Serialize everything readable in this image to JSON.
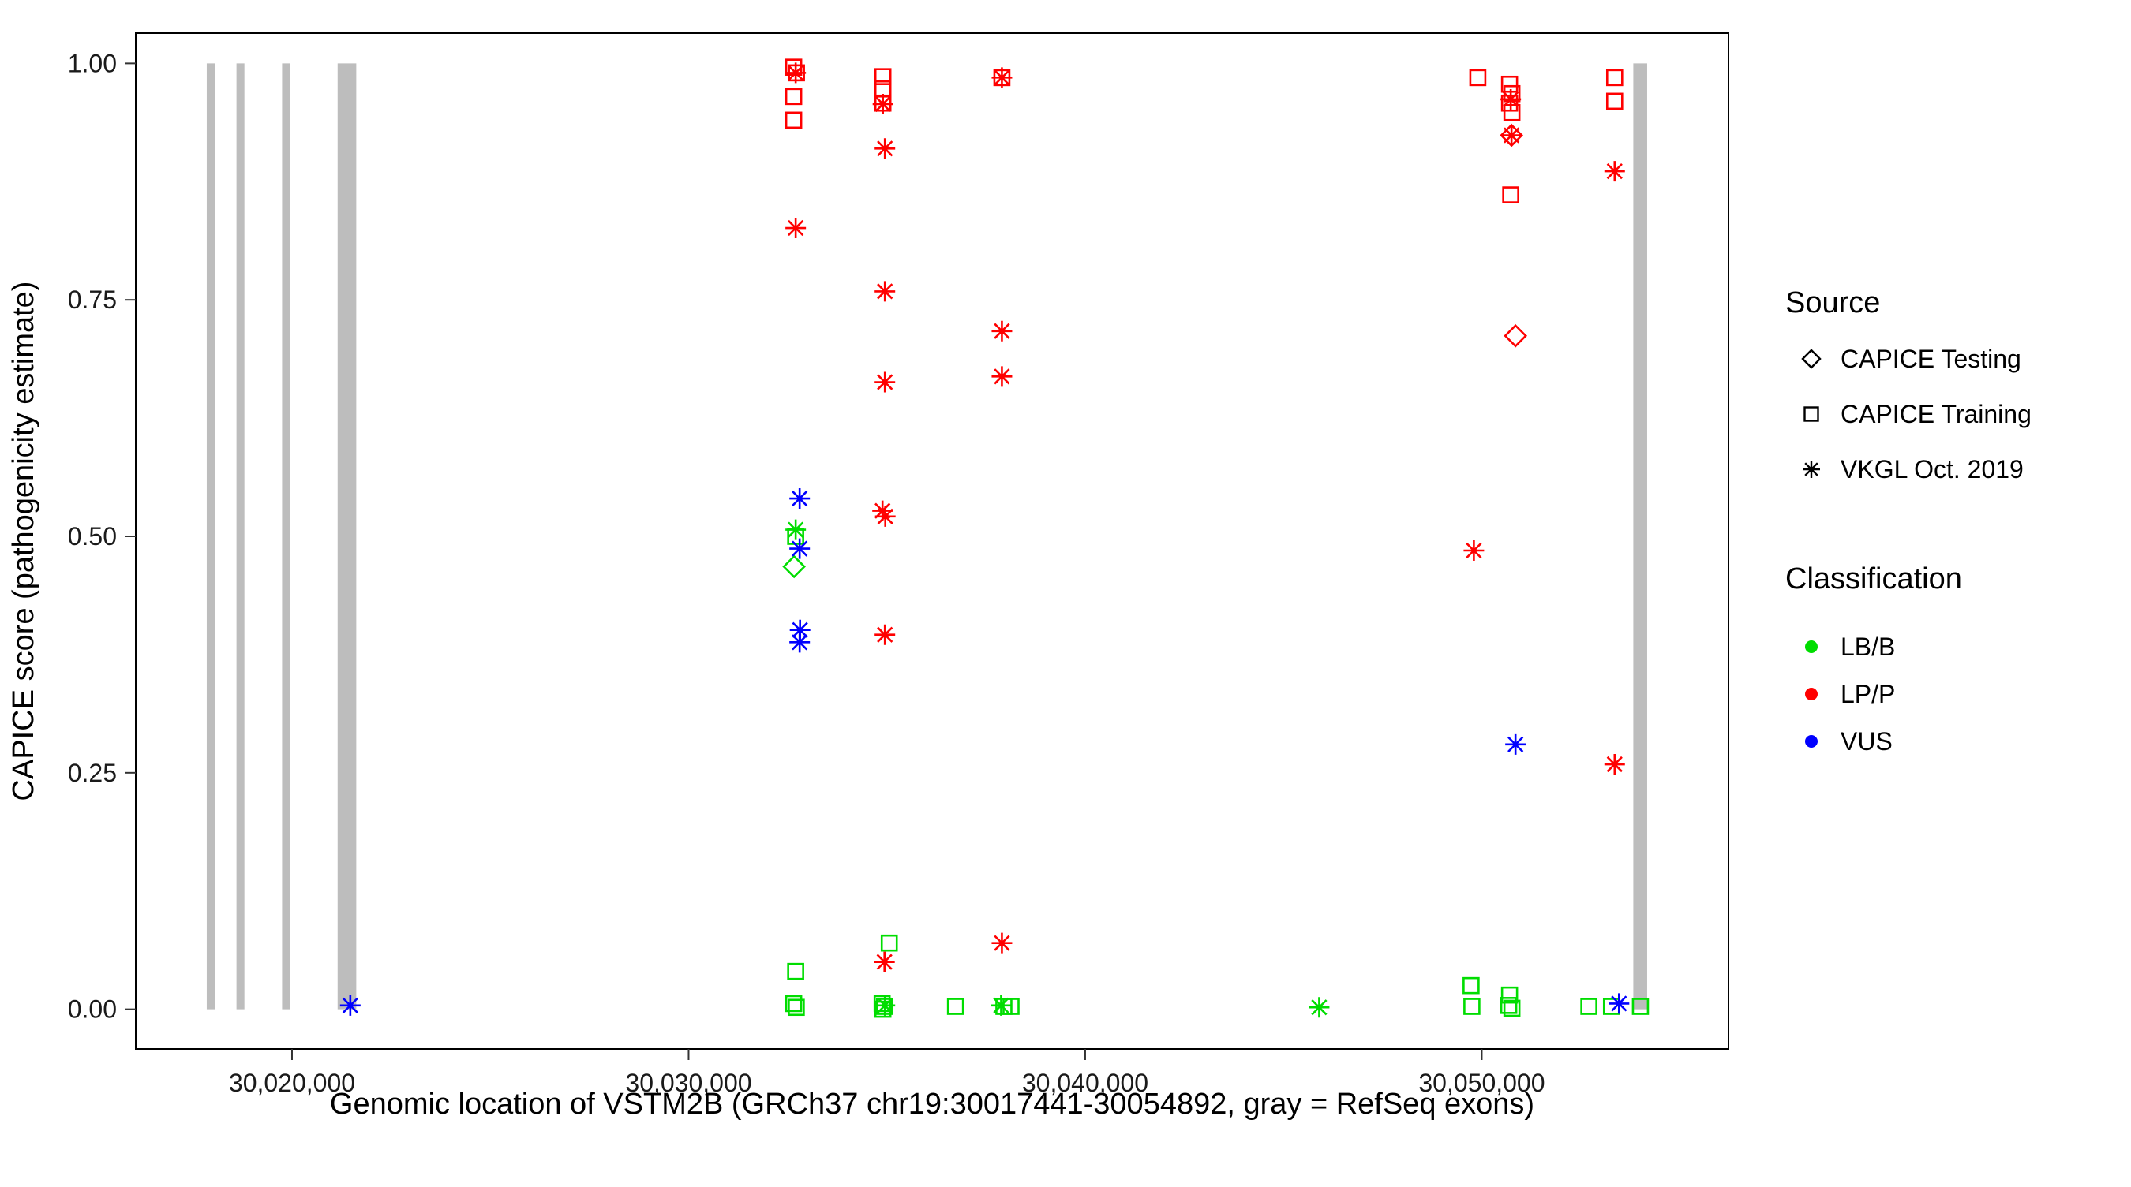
{
  "chart_data": {
    "type": "scatter",
    "title": "",
    "xlabel": "Genomic location of VSTM2B (GRCh37 chr19:30017441-30054892, gray = RefSeq exons)",
    "ylabel": "CAPICE score (pathogenicity estimate)",
    "xlim": [
      30016060,
      30056220
    ],
    "ylim": [
      -0.042,
      1.032
    ],
    "grid": "off",
    "legend_position": "right",
    "x_ticks": [
      {
        "value": 30020000,
        "label": "30,020,000"
      },
      {
        "value": 30030000,
        "label": "30,030,000"
      },
      {
        "value": 30040000,
        "label": "30,040,000"
      },
      {
        "value": 30050000,
        "label": "30,050,000"
      }
    ],
    "y_ticks": [
      {
        "value": 0.0,
        "label": "0.00"
      },
      {
        "value": 0.25,
        "label": "0.25"
      },
      {
        "value": 0.5,
        "label": "0.50"
      },
      {
        "value": 0.75,
        "label": "0.75"
      },
      {
        "value": 1.0,
        "label": "1.00"
      }
    ],
    "exon_color": "#bdbdbd",
    "exons": [
      {
        "start": 30017850,
        "end": 30018050
      },
      {
        "start": 30018600,
        "end": 30018800
      },
      {
        "start": 30019750,
        "end": 30019950
      },
      {
        "start": 30021150,
        "end": 30021620
      },
      {
        "start": 30053820,
        "end": 30054170
      }
    ],
    "classification_colors": {
      "LB/B": "#00dd00",
      "LP/P": "#ff0000",
      "VUS": "#0000ff"
    },
    "source_shapes": {
      "CAPICE Testing": "diamond",
      "CAPICE Training": "square",
      "VKGL Oct. 2019": "asterisk"
    },
    "points": [
      {
        "x": 30032650,
        "y": 0.996,
        "classification": "LP/P",
        "source": "CAPICE Training"
      },
      {
        "x": 30032720,
        "y": 0.99,
        "classification": "LP/P",
        "source": "CAPICE Training"
      },
      {
        "x": 30032650,
        "y": 0.965,
        "classification": "LP/P",
        "source": "CAPICE Training"
      },
      {
        "x": 30032650,
        "y": 0.94,
        "classification": "LP/P",
        "source": "CAPICE Training"
      },
      {
        "x": 30034900,
        "y": 0.986,
        "classification": "LP/P",
        "source": "CAPICE Training"
      },
      {
        "x": 30034900,
        "y": 0.973,
        "classification": "LP/P",
        "source": "CAPICE Training"
      },
      {
        "x": 30034900,
        "y": 0.958,
        "classification": "LP/P",
        "source": "CAPICE Training"
      },
      {
        "x": 30037900,
        "y": 0.985,
        "classification": "LP/P",
        "source": "CAPICE Training"
      },
      {
        "x": 30049900,
        "y": 0.985,
        "classification": "LP/P",
        "source": "CAPICE Training"
      },
      {
        "x": 30050700,
        "y": 0.978,
        "classification": "LP/P",
        "source": "CAPICE Training"
      },
      {
        "x": 30050760,
        "y": 0.968,
        "classification": "LP/P",
        "source": "CAPICE Training"
      },
      {
        "x": 30050700,
        "y": 0.958,
        "classification": "LP/P",
        "source": "CAPICE Training"
      },
      {
        "x": 30050760,
        "y": 0.948,
        "classification": "LP/P",
        "source": "CAPICE Training"
      },
      {
        "x": 30050730,
        "y": 0.861,
        "classification": "LP/P",
        "source": "CAPICE Training"
      },
      {
        "x": 30053350,
        "y": 0.985,
        "classification": "LP/P",
        "source": "CAPICE Training"
      },
      {
        "x": 30053350,
        "y": 0.96,
        "classification": "LP/P",
        "source": "CAPICE Training"
      },
      {
        "x": 30032700,
        "y": 0.99,
        "classification": "LP/P",
        "source": "VKGL Oct. 2019"
      },
      {
        "x": 30032700,
        "y": 0.826,
        "classification": "LP/P",
        "source": "VKGL Oct. 2019"
      },
      {
        "x": 30034900,
        "y": 0.957,
        "classification": "LP/P",
        "source": "VKGL Oct. 2019"
      },
      {
        "x": 30034950,
        "y": 0.91,
        "classification": "LP/P",
        "source": "VKGL Oct. 2019"
      },
      {
        "x": 30034950,
        "y": 0.759,
        "classification": "LP/P",
        "source": "VKGL Oct. 2019"
      },
      {
        "x": 30034950,
        "y": 0.663,
        "classification": "LP/P",
        "source": "VKGL Oct. 2019"
      },
      {
        "x": 30034890,
        "y": 0.527,
        "classification": "LP/P",
        "source": "VKGL Oct. 2019"
      },
      {
        "x": 30034960,
        "y": 0.521,
        "classification": "LP/P",
        "source": "VKGL Oct. 2019"
      },
      {
        "x": 30034950,
        "y": 0.396,
        "classification": "LP/P",
        "source": "VKGL Oct. 2019"
      },
      {
        "x": 30034940,
        "y": 0.05,
        "classification": "LP/P",
        "source": "VKGL Oct. 2019"
      },
      {
        "x": 30037900,
        "y": 0.985,
        "classification": "LP/P",
        "source": "VKGL Oct. 2019"
      },
      {
        "x": 30037900,
        "y": 0.717,
        "classification": "LP/P",
        "source": "VKGL Oct. 2019"
      },
      {
        "x": 30037900,
        "y": 0.669,
        "classification": "LP/P",
        "source": "VKGL Oct. 2019"
      },
      {
        "x": 30037900,
        "y": 0.07,
        "classification": "LP/P",
        "source": "VKGL Oct. 2019"
      },
      {
        "x": 30050730,
        "y": 0.962,
        "classification": "LP/P",
        "source": "VKGL Oct. 2019"
      },
      {
        "x": 30050750,
        "y": 0.924,
        "classification": "LP/P",
        "source": "VKGL Oct. 2019"
      },
      {
        "x": 30049800,
        "y": 0.485,
        "classification": "LP/P",
        "source": "VKGL Oct. 2019"
      },
      {
        "x": 30053350,
        "y": 0.886,
        "classification": "LP/P",
        "source": "VKGL Oct. 2019"
      },
      {
        "x": 30053350,
        "y": 0.259,
        "classification": "LP/P",
        "source": "VKGL Oct. 2019"
      },
      {
        "x": 30050750,
        "y": 0.924,
        "classification": "LP/P",
        "source": "CAPICE Testing"
      },
      {
        "x": 30050850,
        "y": 0.712,
        "classification": "LP/P",
        "source": "CAPICE Testing"
      },
      {
        "x": 30032700,
        "y": 0.5,
        "classification": "LB/B",
        "source": "CAPICE Training"
      },
      {
        "x": 30032700,
        "y": 0.04,
        "classification": "LB/B",
        "source": "CAPICE Training"
      },
      {
        "x": 30032650,
        "y": 0.006,
        "classification": "LB/B",
        "source": "CAPICE Training"
      },
      {
        "x": 30032715,
        "y": 0.002,
        "classification": "LB/B",
        "source": "CAPICE Training"
      },
      {
        "x": 30035060,
        "y": 0.07,
        "classification": "LB/B",
        "source": "CAPICE Training"
      },
      {
        "x": 30034880,
        "y": 0.006,
        "classification": "LB/B",
        "source": "CAPICE Training"
      },
      {
        "x": 30034940,
        "y": 0.003,
        "classification": "LB/B",
        "source": "CAPICE Training"
      },
      {
        "x": 30034900,
        "y": 0.0,
        "classification": "LB/B",
        "source": "CAPICE Training"
      },
      {
        "x": 30036730,
        "y": 0.003,
        "classification": "LB/B",
        "source": "CAPICE Training"
      },
      {
        "x": 30037950,
        "y": 0.003,
        "classification": "LB/B",
        "source": "CAPICE Training"
      },
      {
        "x": 30038130,
        "y": 0.003,
        "classification": "LB/B",
        "source": "CAPICE Training"
      },
      {
        "x": 30049730,
        "y": 0.025,
        "classification": "LB/B",
        "source": "CAPICE Training"
      },
      {
        "x": 30049750,
        "y": 0.003,
        "classification": "LB/B",
        "source": "CAPICE Training"
      },
      {
        "x": 30050700,
        "y": 0.015,
        "classification": "LB/B",
        "source": "CAPICE Training"
      },
      {
        "x": 30050680,
        "y": 0.004,
        "classification": "LB/B",
        "source": "CAPICE Training"
      },
      {
        "x": 30050760,
        "y": 0.001,
        "classification": "LB/B",
        "source": "CAPICE Training"
      },
      {
        "x": 30052700,
        "y": 0.003,
        "classification": "LB/B",
        "source": "CAPICE Training"
      },
      {
        "x": 30053270,
        "y": 0.003,
        "classification": "LB/B",
        "source": "CAPICE Training"
      },
      {
        "x": 30054000,
        "y": 0.003,
        "classification": "LB/B",
        "source": "CAPICE Training"
      },
      {
        "x": 30032700,
        "y": 0.507,
        "classification": "LB/B",
        "source": "VKGL Oct. 2019"
      },
      {
        "x": 30034950,
        "y": 0.004,
        "classification": "LB/B",
        "source": "VKGL Oct. 2019"
      },
      {
        "x": 30037880,
        "y": 0.004,
        "classification": "LB/B",
        "source": "VKGL Oct. 2019"
      },
      {
        "x": 30045900,
        "y": 0.002,
        "classification": "LB/B",
        "source": "VKGL Oct. 2019"
      },
      {
        "x": 30032660,
        "y": 0.468,
        "classification": "LB/B",
        "source": "CAPICE Testing"
      },
      {
        "x": 30032800,
        "y": 0.54,
        "classification": "VUS",
        "source": "VKGL Oct. 2019"
      },
      {
        "x": 30032800,
        "y": 0.487,
        "classification": "VUS",
        "source": "VKGL Oct. 2019"
      },
      {
        "x": 30032810,
        "y": 0.401,
        "classification": "VUS",
        "source": "VKGL Oct. 2019"
      },
      {
        "x": 30032800,
        "y": 0.388,
        "classification": "VUS",
        "source": "VKGL Oct. 2019"
      },
      {
        "x": 30021470,
        "y": 0.004,
        "classification": "VUS",
        "source": "VKGL Oct. 2019"
      },
      {
        "x": 30050850,
        "y": 0.28,
        "classification": "VUS",
        "source": "VKGL Oct. 2019"
      },
      {
        "x": 30053460,
        "y": 0.006,
        "classification": "VUS",
        "source": "VKGL Oct. 2019"
      }
    ],
    "legend": {
      "source": {
        "title": "Source",
        "items": [
          {
            "label": "CAPICE Testing",
            "shape": "diamond"
          },
          {
            "label": "CAPICE Training",
            "shape": "square"
          },
          {
            "label": "VKGL Oct. 2019",
            "shape": "asterisk"
          }
        ]
      },
      "classification": {
        "title": "Classification",
        "items": [
          {
            "label": "LB/B",
            "color": "#00dd00"
          },
          {
            "label": "LP/P",
            "color": "#ff0000"
          },
          {
            "label": "VUS",
            "color": "#0000ff"
          }
        ]
      }
    }
  }
}
